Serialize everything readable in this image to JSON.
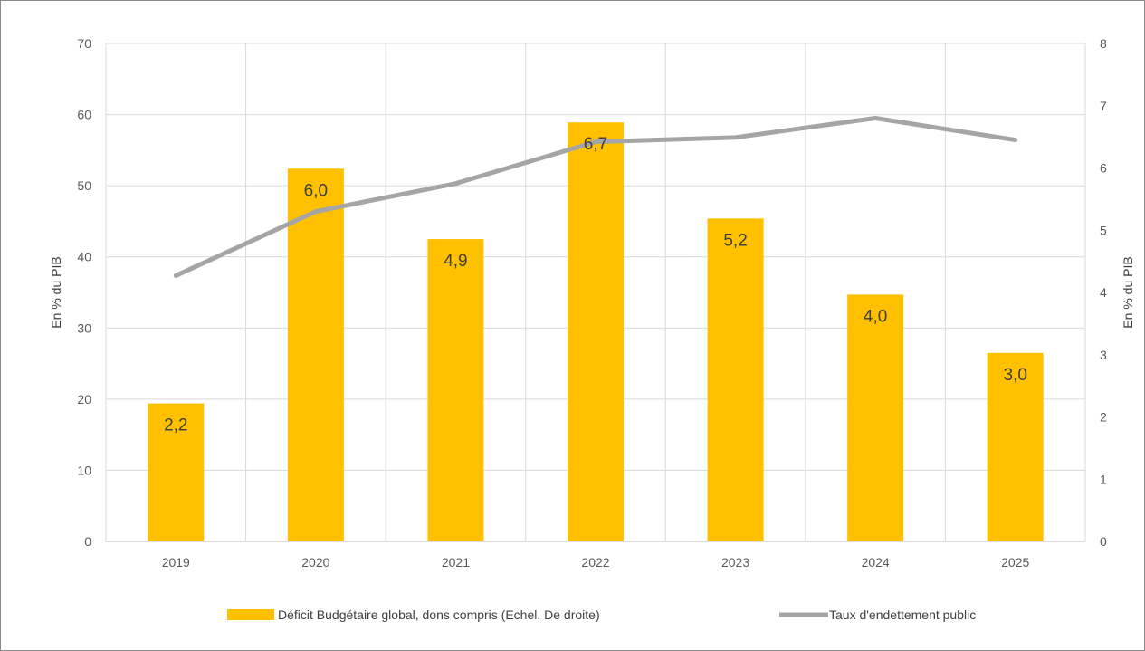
{
  "chart_data": {
    "type": "bar",
    "categories": [
      "2019",
      "2020",
      "2021",
      "2022",
      "2023",
      "2024",
      "2025"
    ],
    "series": [
      {
        "name": "Déficit Budgétaire global, dons compris (Echel. De droite)",
        "type": "bar",
        "axis": "left",
        "values": [
          19.4,
          52.4,
          42.5,
          58.9,
          45.4,
          34.7,
          26.5
        ],
        "labels": [
          "2,2",
          "6,0",
          "4,9",
          "6,7",
          "5,2",
          "4,0",
          "3,0"
        ],
        "color": "#FFC000"
      },
      {
        "name": "Taux d'endettement public",
        "type": "line",
        "axis": "right",
        "values": [
          4.27,
          5.3,
          5.75,
          6.42,
          6.49,
          6.8,
          6.45
        ],
        "color": "#A5A5A5"
      }
    ],
    "ylabel": "En % du PIB",
    "y2label": "En % du PIB",
    "ylim": [
      0,
      70
    ],
    "y2lim": [
      0,
      8
    ],
    "yticks": [
      "0",
      "10",
      "20",
      "30",
      "40",
      "50",
      "60",
      "70"
    ],
    "y2ticks": [
      "0",
      "1",
      "2",
      "3",
      "4",
      "5",
      "6",
      "7",
      "8"
    ],
    "grid": true,
    "legend_position": "bottom"
  }
}
